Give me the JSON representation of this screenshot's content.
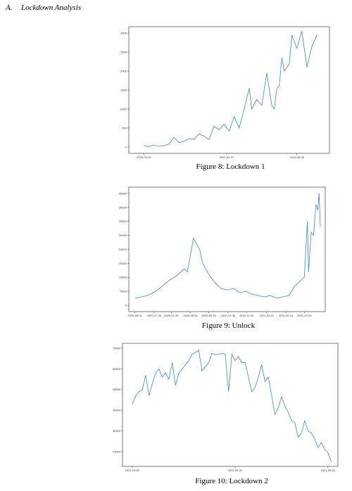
{
  "section": {
    "number": "A.",
    "title": "Lockdown Analysis"
  },
  "chart_data": [
    {
      "type": "line",
      "caption": "Figure 8: Lockdown 1",
      "color": "#3f85c6",
      "x": [
        "2020-03-25",
        "2020-03-27",
        "2020-03-29",
        "2020-03-31",
        "2020-04-02",
        "2020-04-04",
        "2020-04-06",
        "2020-04-08",
        "2020-04-10",
        "2020-04-12",
        "2020-04-14",
        "2020-04-16",
        "2020-04-18",
        "2020-04-20",
        "2020-04-22",
        "2020-04-24",
        "2020-04-26",
        "2020-04-28",
        "2020-04-30",
        "2020-05-02",
        "2020-05-04",
        "2020-05-06",
        "2020-05-07",
        "2020-05-09",
        "2020-05-11",
        "2020-05-13",
        "2020-05-15",
        "2020-05-16",
        "2020-05-17",
        "2020-05-18",
        "2020-05-19",
        "2020-05-20",
        "2020-05-22",
        "2020-05-23",
        "2020-05-25",
        "2020-05-27",
        "2020-05-29",
        "2020-05-31",
        "2020-06-02"
      ],
      "values": [
        40,
        10,
        50,
        20,
        30,
        80,
        250,
        120,
        150,
        220,
        200,
        350,
        280,
        200,
        550,
        450,
        600,
        420,
        800,
        500,
        1000,
        1550,
        1000,
        1250,
        1100,
        1950,
        1100,
        1000,
        1550,
        1600,
        2350,
        2000,
        2200,
        2950,
        2600,
        3050,
        2100,
        2650,
        2950
      ],
      "xlim": [
        "2020-03-19",
        "2020-06-07"
      ],
      "xticks": [
        "2020-03-25",
        "2020-04-27",
        "2020-05-25"
      ],
      "ylim": [
        -167,
        3167
      ],
      "yticks": [
        0,
        500,
        1000,
        1500,
        2000,
        2500,
        3000
      ]
    },
    {
      "type": "line",
      "caption": "Figure 9: Unlock",
      "color": "#3f85c6",
      "x": [
        "2020-06-01",
        "2020-06-11",
        "2020-06-21",
        "2020-07-01",
        "2020-07-11",
        "2020-07-21",
        "2020-07-31",
        "2020-08-10",
        "2020-08-20",
        "2020-08-25",
        "2020-08-30",
        "2020-09-04",
        "2020-09-09",
        "2020-09-14",
        "2020-09-19",
        "2020-09-29",
        "2020-10-09",
        "2020-10-19",
        "2020-10-29",
        "2020-11-08",
        "2020-11-18",
        "2020-11-28",
        "2020-12-08",
        "2020-12-18",
        "2020-12-28",
        "2021-01-07",
        "2021-01-17",
        "2021-01-27",
        "2021-02-06",
        "2021-02-16",
        "2021-02-26",
        "2021-03-03",
        "2021-03-08",
        "2021-03-10",
        "2021-03-14",
        "2021-03-18",
        "2021-03-22",
        "2021-03-25",
        "2021-03-27",
        "2021-03-29"
      ],
      "values": [
        2500,
        3000,
        3500,
        4500,
        6000,
        8000,
        9500,
        11000,
        13000,
        12000,
        18000,
        24000,
        22000,
        20000,
        15000,
        11000,
        8000,
        6000,
        5500,
        6000,
        4500,
        5000,
        4000,
        3500,
        3000,
        3500,
        2500,
        3000,
        3500,
        7000,
        9000,
        10000,
        30000,
        12000,
        26000,
        25000,
        36000,
        34000,
        40000,
        28000
      ],
      "xlim": [
        "2020-05-22",
        "2021-04-06"
      ],
      "xticks": [
        "2020-06-01",
        "2020-07-02",
        "2020-07-30",
        "2020-08-30",
        "2020-09-29",
        "2020-10-30",
        "2020-11-29",
        "2021-01-01",
        "2021-02-01",
        "2021-03-03"
      ],
      "ylim": [
        -2264,
        42264
      ],
      "yticks": [
        0,
        5000,
        10000,
        15000,
        20000,
        25000,
        30000,
        35000,
        40000
      ]
    },
    {
      "type": "line",
      "caption": "Figure 10: Lockdown 2",
      "color": "#3f85c6",
      "x": [
        "2021-04-02",
        "2021-04-03",
        "2021-04-04",
        "2021-04-05",
        "2021-04-06",
        "2021-04-07",
        "2021-04-08",
        "2021-04-09",
        "2021-04-10",
        "2021-04-11",
        "2021-04-12",
        "2021-04-13",
        "2021-04-14",
        "2021-04-15",
        "2021-04-16",
        "2021-04-17",
        "2021-04-18",
        "2021-04-19",
        "2021-04-20",
        "2021-04-21",
        "2021-04-22",
        "2021-04-23",
        "2021-04-24",
        "2021-04-25",
        "2021-04-26",
        "2021-04-27",
        "2021-04-28",
        "2021-04-29",
        "2021-04-30",
        "2021-05-01",
        "2021-05-02",
        "2021-05-03",
        "2021-05-04",
        "2021-05-05",
        "2021-05-06",
        "2021-05-07",
        "2021-05-08",
        "2021-05-09",
        "2021-05-10",
        "2021-05-11",
        "2021-05-12",
        "2021-05-13",
        "2021-05-14",
        "2021-05-15",
        "2021-05-16",
        "2021-05-17",
        "2021-05-18",
        "2021-05-19",
        "2021-05-20",
        "2021-05-21",
        "2021-05-22",
        "2021-05-23",
        "2021-05-24",
        "2021-05-25",
        "2021-05-26",
        "2021-05-27",
        "2021-05-28",
        "2021-05-29",
        "2021-05-30",
        "2021-05-31",
        "2021-06-01"
      ],
      "values": [
        43000,
        47000,
        49000,
        50000,
        57000,
        47000,
        53000,
        58000,
        60000,
        56000,
        58000,
        55000,
        63000,
        52000,
        58000,
        60000,
        62000,
        64000,
        67000,
        68000,
        69000,
        59000,
        61000,
        63000,
        67500,
        67000,
        67000,
        67500,
        67000,
        49000,
        67000,
        64000,
        66000,
        63000,
        63000,
        56000,
        49000,
        51000,
        56000,
        62000,
        54000,
        56000,
        47000,
        38000,
        41000,
        46500,
        42000,
        39000,
        35000,
        34000,
        27000,
        29000,
        35000,
        30000,
        29000,
        26000,
        22000,
        24500,
        21000,
        19500,
        15000
      ],
      "xlim": [
        "2021-03-30",
        "2021-06-03"
      ],
      "xticks": [
        "2021-04-02",
        "2021-05-03",
        "2021-05-31"
      ],
      "ylim": [
        12860,
        72380
      ],
      "yticks": [
        20000,
        30000,
        40000,
        50000,
        60000,
        70000
      ]
    }
  ]
}
